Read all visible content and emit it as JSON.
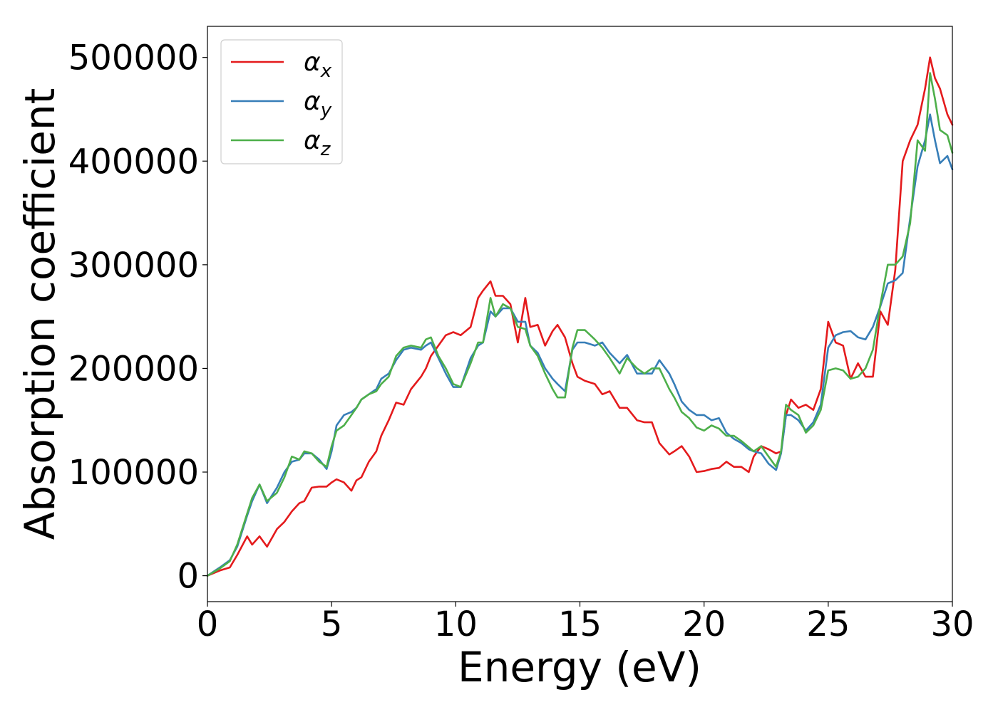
{
  "chart_data": {
    "type": "line",
    "xlabel": "Energy (eV)",
    "ylabel": "Absorption coefficient",
    "xlim": [
      0,
      30
    ],
    "ylim": [
      -25000,
      530000
    ],
    "xticks": [
      0,
      5,
      10,
      15,
      20,
      25,
      30
    ],
    "xtick_labels": [
      "0",
      "5",
      "10",
      "15",
      "20",
      "25",
      "30"
    ],
    "yticks": [
      0,
      100000,
      200000,
      300000,
      400000,
      500000
    ],
    "ytick_labels": [
      "0",
      "100000",
      "200000",
      "300000",
      "400000",
      "500000"
    ],
    "grid": false,
    "legend_position": "top-left",
    "series": [
      {
        "name": "α_x",
        "label_base": "α",
        "label_sub": "x",
        "color": "#e41a1c",
        "x": [
          0,
          0.5,
          0.9,
          1.2,
          1.6,
          1.8,
          2.1,
          2.4,
          2.8,
          3.1,
          3.4,
          3.7,
          3.9,
          4.2,
          4.5,
          4.8,
          5.0,
          5.2,
          5.5,
          5.8,
          6.0,
          6.2,
          6.5,
          6.8,
          7.0,
          7.3,
          7.6,
          7.9,
          8.2,
          8.6,
          8.8,
          9.0,
          9.3,
          9.6,
          9.9,
          10.2,
          10.6,
          10.9,
          11.1,
          11.4,
          11.6,
          11.9,
          12.2,
          12.5,
          12.8,
          13.0,
          13.3,
          13.6,
          13.9,
          14.1,
          14.4,
          14.7,
          14.9,
          15.2,
          15.6,
          15.9,
          16.2,
          16.6,
          16.9,
          17.3,
          17.6,
          17.9,
          18.2,
          18.6,
          18.8,
          19.1,
          19.4,
          19.7,
          20.0,
          20.3,
          20.6,
          20.9,
          21.2,
          21.5,
          21.8,
          22.0,
          22.3,
          22.6,
          22.9,
          23.1,
          23.3,
          23.5,
          23.8,
          24.1,
          24.4,
          24.7,
          25.0,
          25.3,
          25.6,
          25.9,
          26.2,
          26.5,
          26.8,
          27.1,
          27.4,
          27.7,
          28.0,
          28.3,
          28.6,
          28.9,
          29.1,
          29.3,
          29.5,
          29.8,
          30.0
        ],
        "y": [
          0,
          5000,
          8000,
          20000,
          38000,
          30000,
          38000,
          28000,
          45000,
          52000,
          62000,
          70000,
          72000,
          85000,
          86000,
          86000,
          90000,
          93000,
          90000,
          82000,
          92000,
          95000,
          110000,
          120000,
          135000,
          150000,
          167000,
          165000,
          180000,
          192000,
          200000,
          212000,
          222000,
          232000,
          235000,
          232000,
          240000,
          268000,
          275000,
          284000,
          270000,
          270000,
          262000,
          225000,
          268000,
          240000,
          242000,
          222000,
          236000,
          242000,
          230000,
          205000,
          192000,
          188000,
          185000,
          175000,
          178000,
          162000,
          162000,
          150000,
          148000,
          148000,
          128000,
          117000,
          120000,
          125000,
          115000,
          100000,
          101000,
          103000,
          104000,
          110000,
          105000,
          105000,
          100000,
          115000,
          125000,
          122000,
          118000,
          120000,
          155000,
          170000,
          162000,
          165000,
          160000,
          180000,
          245000,
          225000,
          222000,
          190000,
          205000,
          192000,
          192000,
          255000,
          242000,
          295000,
          400000,
          420000,
          435000,
          470000,
          500000,
          480000,
          470000,
          445000,
          435000
        ]
      },
      {
        "name": "α_y",
        "label_base": "α",
        "label_sub": "y",
        "color": "#377eb8",
        "x": [
          0,
          0.5,
          0.9,
          1.2,
          1.6,
          1.8,
          2.1,
          2.4,
          2.8,
          3.1,
          3.4,
          3.7,
          3.9,
          4.2,
          4.5,
          4.8,
          5.0,
          5.2,
          5.5,
          5.8,
          6.0,
          6.2,
          6.5,
          6.8,
          7.0,
          7.3,
          7.6,
          7.9,
          8.2,
          8.6,
          8.8,
          9.0,
          9.3,
          9.6,
          9.9,
          10.2,
          10.6,
          10.9,
          11.1,
          11.4,
          11.6,
          11.9,
          12.2,
          12.5,
          12.8,
          13.0,
          13.3,
          13.6,
          13.9,
          14.1,
          14.4,
          14.7,
          14.9,
          15.2,
          15.6,
          15.9,
          16.2,
          16.6,
          16.9,
          17.3,
          17.6,
          17.9,
          18.2,
          18.6,
          18.8,
          19.1,
          19.4,
          19.7,
          20.0,
          20.3,
          20.6,
          20.9,
          21.2,
          21.5,
          21.8,
          22.0,
          22.3,
          22.6,
          22.9,
          23.1,
          23.3,
          23.5,
          23.8,
          24.1,
          24.4,
          24.7,
          25.0,
          25.3,
          25.6,
          25.9,
          26.2,
          26.5,
          26.8,
          27.1,
          27.4,
          27.7,
          28.0,
          28.3,
          28.6,
          28.9,
          29.1,
          29.3,
          29.5,
          29.8,
          30.0
        ],
        "y": [
          0,
          8000,
          15000,
          28000,
          58000,
          72000,
          88000,
          70000,
          85000,
          100000,
          110000,
          112000,
          118000,
          118000,
          112000,
          103000,
          120000,
          145000,
          155000,
          158000,
          162000,
          170000,
          175000,
          180000,
          190000,
          195000,
          208000,
          218000,
          220000,
          218000,
          222000,
          225000,
          210000,
          195000,
          182000,
          182000,
          210000,
          222000,
          225000,
          255000,
          250000,
          258000,
          258000,
          245000,
          245000,
          222000,
          215000,
          200000,
          190000,
          185000,
          178000,
          218000,
          225000,
          225000,
          222000,
          225000,
          215000,
          205000,
          213000,
          195000,
          195000,
          195000,
          208000,
          195000,
          185000,
          168000,
          160000,
          155000,
          155000,
          150000,
          152000,
          138000,
          132000,
          128000,
          122000,
          120000,
          118000,
          108000,
          102000,
          118000,
          155000,
          155000,
          150000,
          140000,
          148000,
          165000,
          220000,
          232000,
          235000,
          236000,
          230000,
          228000,
          240000,
          260000,
          282000,
          285000,
          292000,
          345000,
          395000,
          420000,
          445000,
          420000,
          398000,
          405000,
          392000
        ]
      },
      {
        "name": "α_z",
        "label_base": "α",
        "label_sub": "z",
        "color": "#4daf4a",
        "x": [
          0,
          0.5,
          0.9,
          1.2,
          1.6,
          1.8,
          2.1,
          2.4,
          2.8,
          3.1,
          3.4,
          3.7,
          3.9,
          4.2,
          4.5,
          4.8,
          5.0,
          5.2,
          5.5,
          5.8,
          6.0,
          6.2,
          6.5,
          6.8,
          7.0,
          7.3,
          7.6,
          7.9,
          8.2,
          8.6,
          8.8,
          9.0,
          9.3,
          9.6,
          9.9,
          10.2,
          10.6,
          10.9,
          11.1,
          11.4,
          11.6,
          11.9,
          12.2,
          12.5,
          12.8,
          13.0,
          13.3,
          13.6,
          13.9,
          14.1,
          14.4,
          14.7,
          14.9,
          15.2,
          15.6,
          15.9,
          16.2,
          16.6,
          16.9,
          17.3,
          17.6,
          17.9,
          18.2,
          18.6,
          18.8,
          19.1,
          19.4,
          19.7,
          20.0,
          20.3,
          20.6,
          20.9,
          21.2,
          21.5,
          21.8,
          22.0,
          22.3,
          22.6,
          22.9,
          23.1,
          23.3,
          23.5,
          23.8,
          24.1,
          24.4,
          24.7,
          25.0,
          25.3,
          25.6,
          25.9,
          26.2,
          26.5,
          26.8,
          27.1,
          27.4,
          27.7,
          28.0,
          28.3,
          28.6,
          28.9,
          29.1,
          29.3,
          29.5,
          29.8,
          30.0
        ],
        "y": [
          0,
          7000,
          14000,
          30000,
          60000,
          75000,
          88000,
          72000,
          80000,
          95000,
          115000,
          112000,
          120000,
          118000,
          110000,
          105000,
          125000,
          140000,
          145000,
          155000,
          162000,
          170000,
          175000,
          178000,
          185000,
          192000,
          212000,
          220000,
          222000,
          220000,
          228000,
          230000,
          212000,
          200000,
          185000,
          182000,
          205000,
          225000,
          225000,
          268000,
          250000,
          262000,
          258000,
          240000,
          238000,
          222000,
          212000,
          195000,
          180000,
          172000,
          172000,
          220000,
          237000,
          237000,
          228000,
          220000,
          210000,
          195000,
          210000,
          200000,
          195000,
          200000,
          200000,
          180000,
          172000,
          158000,
          152000,
          143000,
          140000,
          145000,
          142000,
          135000,
          135000,
          130000,
          124000,
          120000,
          125000,
          115000,
          105000,
          120000,
          165000,
          160000,
          155000,
          138000,
          145000,
          160000,
          198000,
          200000,
          198000,
          190000,
          192000,
          200000,
          218000,
          262000,
          300000,
          300000,
          308000,
          340000,
          420000,
          410000,
          485000,
          460000,
          430000,
          425000,
          408000
        ]
      }
    ]
  }
}
